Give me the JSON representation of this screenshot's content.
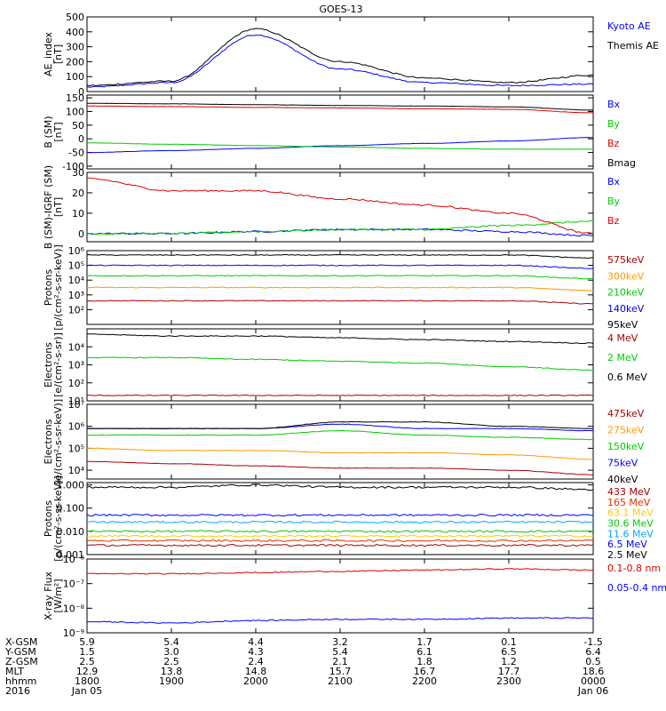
{
  "title": "GOES-13",
  "panels": [
    {
      "id": "ae",
      "ylabel": [
        "AE_index",
        "[nT]"
      ],
      "scale": "linear",
      "ylim": [
        0,
        500
      ],
      "yticks": [
        "0",
        "100",
        "200",
        "300",
        "400",
        "500"
      ],
      "yticks_values": [
        0,
        100,
        200,
        300,
        400,
        500
      ],
      "legend": [
        {
          "label": "Kyoto AE",
          "color": "#0000ff"
        },
        {
          "label": "Themis AE",
          "color": "#000000"
        }
      ]
    },
    {
      "id": "b_sm",
      "ylabel": [
        "B (SM)",
        "[nT]"
      ],
      "scale": "linear",
      "ylim": [
        -110,
        160
      ],
      "yticks": [
        "-100",
        "-50",
        "0",
        "50",
        "100",
        "150"
      ],
      "yticks_values": [
        -100,
        -50,
        0,
        50,
        100,
        150
      ],
      "legend": [
        {
          "label": "Bx",
          "color": "#0000ff"
        },
        {
          "label": "By",
          "color": "#00cc00"
        },
        {
          "label": "Bz",
          "color": "#dd0000"
        },
        {
          "label": "Bmag",
          "color": "#000000"
        }
      ]
    },
    {
      "id": "b_igrf",
      "ylabel": [
        "B (SM)-IGRF (SM)",
        "[nT]"
      ],
      "scale": "linear",
      "ylim": [
        -4,
        30
      ],
      "yticks": [
        "0",
        "10",
        "20",
        "30"
      ],
      "yticks_values": [
        0,
        10,
        20,
        30
      ],
      "legend": [
        {
          "label": "Bx",
          "color": "#0000ff"
        },
        {
          "label": "By",
          "color": "#00cc00"
        },
        {
          "label": "Bz",
          "color": "#dd0000"
        }
      ]
    },
    {
      "id": "protons_low",
      "ylabel": [
        "Protons",
        "[p/(cm²-s-sr-keV)]"
      ],
      "scale": "log",
      "ylim": [
        1,
        6
      ],
      "yticks": [
        "10²",
        "10³",
        "10⁴",
        "10⁵",
        "10⁶"
      ],
      "yticks_values": [
        2,
        3,
        4,
        5,
        6
      ],
      "legend": [
        {
          "label": "575keV",
          "color": "#aa0000"
        },
        {
          "label": "300keV",
          "color": "#ff9900"
        },
        {
          "label": "210keV",
          "color": "#00cc00"
        },
        {
          "label": "140keV",
          "color": "#0000ff"
        },
        {
          "label": "95keV",
          "color": "#000000"
        }
      ]
    },
    {
      "id": "electrons_mev",
      "ylabel": [
        "Electrons",
        "[e/(cm²-s-sr)]"
      ],
      "scale": "log",
      "ylim": [
        1,
        5
      ],
      "yticks": [
        "10¹",
        "10²",
        "10³",
        "10⁴"
      ],
      "yticks_values": [
        1,
        2,
        3,
        4
      ],
      "legend": [
        {
          "label": "4 MeV",
          "color": "#aa0000"
        },
        {
          "label": "2 MeV",
          "color": "#00cc00"
        },
        {
          "label": "0.6 MeV",
          "color": "#000000"
        }
      ]
    },
    {
      "id": "electrons_kev",
      "ylabel": [
        "Electrons",
        "[e/(cm²-s-sr-keV)]"
      ],
      "scale": "log",
      "ylim": [
        3.6,
        7
      ],
      "yticks": [
        "10⁴",
        "10⁵",
        "10⁶",
        "10⁷"
      ],
      "yticks_values": [
        4,
        5,
        6,
        7
      ],
      "legend": [
        {
          "label": "475keV",
          "color": "#aa0000"
        },
        {
          "label": "275keV",
          "color": "#ff9900"
        },
        {
          "label": "150keV",
          "color": "#00cc00"
        },
        {
          "label": "75keV",
          "color": "#0000ff"
        },
        {
          "label": "40keV",
          "color": "#000000"
        }
      ]
    },
    {
      "id": "protons_mev",
      "ylabel": [
        "Protons",
        "[p/(cm²-s-sr-keV)]"
      ],
      "scale": "log",
      "ylim": [
        -3,
        0.1
      ],
      "yticks": [
        "0.001",
        "0.010",
        "0.100",
        "1.000"
      ],
      "yticks_values": [
        -3,
        -2,
        -1,
        0
      ],
      "legend": [
        {
          "label": "433 MeV",
          "color": "#aa0000"
        },
        {
          "label": "165 MeV",
          "color": "#dd3300"
        },
        {
          "label": "63.1 MeV",
          "color": "#ffcc00"
        },
        {
          "label": "30.6 MeV",
          "color": "#00cc00"
        },
        {
          "label": "11.6 MeV",
          "color": "#00aaff"
        },
        {
          "label": "6.5 MeV",
          "color": "#0000ff"
        },
        {
          "label": "2.5 MeV",
          "color": "#000000"
        }
      ]
    },
    {
      "id": "xray",
      "ylabel": [
        "X-ray Flux",
        "[W/m²]"
      ],
      "scale": "log",
      "ylim": [
        -9,
        -6
      ],
      "yticks": [
        "10⁻⁹",
        "10⁻⁸",
        "10⁻⁷",
        "10⁻⁶"
      ],
      "yticks_values": [
        -9,
        -8,
        -7,
        -6
      ],
      "legend": [
        {
          "label": "0.1-0.8 nm",
          "color": "#dd0000"
        },
        {
          "label": "0.05-0.4 nm",
          "color": "#0000ff"
        }
      ]
    }
  ],
  "ephemeris": {
    "labels": [
      "X-GSM",
      "Y-GSM",
      "Z-GSM",
      "MLT",
      "hhmm",
      "2016"
    ],
    "columns": [
      [
        "5.9",
        "1.5",
        "2.5",
        "12.9",
        "1800",
        "Jan 05"
      ],
      [
        "5.4",
        "3.0",
        "2.5",
        "13.8",
        "1900",
        ""
      ],
      [
        "4.4",
        "4.3",
        "2.4",
        "14.8",
        "2000",
        ""
      ],
      [
        "3.2",
        "5.4",
        "2.1",
        "15.7",
        "2100",
        ""
      ],
      [
        "1.7",
        "6.1",
        "1.8",
        "16.7",
        "2200",
        ""
      ],
      [
        "0.1",
        "6.5",
        "1.2",
        "17.7",
        "2300",
        ""
      ],
      [
        "-1.5",
        "6.4",
        "0.5",
        "18.6",
        "0000",
        "Jan 06"
      ]
    ]
  },
  "chart_data": {
    "type": "line",
    "title": "GOES-13",
    "x": [
      "1800",
      "1900",
      "2000",
      "2100",
      "2200",
      "2300",
      "0000"
    ],
    "xlabel": "",
    "panels": [
      {
        "name": "AE_index [nT]",
        "series": [
          {
            "name": "Kyoto AE",
            "values": [
              30,
              60,
              380,
              150,
              60,
              40,
              50
            ]
          },
          {
            "name": "Themis AE",
            "values": [
              40,
              70,
              420,
              200,
              90,
              60,
              110
            ]
          }
        ]
      },
      {
        "name": "B (SM) [nT]",
        "series": [
          {
            "name": "Bx",
            "values": [
              -50,
              -43,
              -35,
              -25,
              -17,
              -8,
              5
            ]
          },
          {
            "name": "By",
            "values": [
              -15,
              -20,
              -25,
              -30,
              -35,
              -38,
              -38
            ]
          },
          {
            "name": "Bz",
            "values": [
              120,
              118,
              115,
              113,
              110,
              108,
              95
            ]
          },
          {
            "name": "Bmag",
            "values": [
              130,
              128,
              125,
              122,
              120,
              117,
              105
            ]
          }
        ]
      },
      {
        "name": "B (SM)-IGRF (SM) [nT]",
        "series": [
          {
            "name": "Bx",
            "values": [
              0,
              0,
              1,
              2,
              2,
              1,
              -1
            ]
          },
          {
            "name": "By",
            "values": [
              0,
              0,
              1,
              2,
              2,
              4,
              6
            ]
          },
          {
            "name": "Bz",
            "values": [
              27,
              21,
              21,
              17,
              14,
              10,
              0
            ]
          }
        ]
      },
      {
        "name": "Protons [p/(cm2-s-sr-keV)]",
        "series": [
          {
            "name": "575keV",
            "values": [
              2.6,
              2.6,
              2.6,
              2.6,
              2.6,
              2.6,
              2.4
            ]
          },
          {
            "name": "300keV",
            "values": [
              3.5,
              3.5,
              3.5,
              3.5,
              3.5,
              3.5,
              3.3
            ]
          },
          {
            "name": "210keV",
            "values": [
              4.3,
              4.3,
              4.3,
              4.3,
              4.3,
              4.3,
              4.1
            ]
          },
          {
            "name": "140keV",
            "values": [
              5.0,
              5.0,
              5.0,
              5.0,
              5.0,
              5.0,
              4.8
            ]
          },
          {
            "name": "95keV",
            "values": [
              5.7,
              5.7,
              5.7,
              5.7,
              5.7,
              5.7,
              5.5
            ]
          }
        ]
      },
      {
        "name": "Electrons [e/(cm2-s-sr)]",
        "series": [
          {
            "name": "4 MeV",
            "values": [
              1.3,
              1.3,
              1.3,
              1.3,
              1.3,
              1.3,
              1.3
            ]
          },
          {
            "name": "2 MeV",
            "values": [
              3.4,
              3.4,
              3.3,
              3.2,
              3.1,
              2.9,
              2.7
            ]
          },
          {
            "name": "0.6 MeV",
            "values": [
              4.7,
              4.6,
              4.6,
              4.5,
              4.4,
              4.3,
              4.2
            ]
          }
        ]
      },
      {
        "name": "Electrons [e/(cm2-s-sr-keV)]",
        "series": [
          {
            "name": "475keV",
            "values": [
              4.4,
              4.3,
              4.2,
              4.1,
              4.1,
              4.0,
              3.8
            ]
          },
          {
            "name": "275keV",
            "values": [
              5.0,
              4.9,
              4.9,
              4.8,
              4.8,
              4.7,
              4.5
            ]
          },
          {
            "name": "150keV",
            "values": [
              5.6,
              5.6,
              5.6,
              5.8,
              5.6,
              5.5,
              5.4
            ]
          },
          {
            "name": "75keV",
            "values": [
              5.9,
              5.9,
              5.9,
              6.1,
              5.9,
              5.9,
              5.8
            ]
          },
          {
            "name": "40keV",
            "values": [
              5.9,
              5.9,
              5.9,
              6.2,
              6.2,
              6.0,
              5.9
            ]
          }
        ]
      },
      {
        "name": "Protons [p/(cm2-s-sr-keV)] MeV",
        "series": [
          {
            "name": "433 MeV",
            "values": [
              -2.6,
              -2.6,
              -2.6,
              -2.6,
              -2.6,
              -2.6,
              -2.6
            ]
          },
          {
            "name": "165 MeV",
            "values": [
              -2.4,
              -2.4,
              -2.4,
              -2.4,
              -2.4,
              -2.4,
              -2.4
            ]
          },
          {
            "name": "63.1 MeV",
            "values": [
              -2.2,
              -2.2,
              -2.2,
              -2.2,
              -2.2,
              -2.2,
              -2.2
            ]
          },
          {
            "name": "30.6 MeV",
            "values": [
              -2.0,
              -2.0,
              -2.0,
              -2.0,
              -2.0,
              -2.0,
              -2.0
            ]
          },
          {
            "name": "11.6 MeV",
            "values": [
              -1.6,
              -1.6,
              -1.6,
              -1.6,
              -1.6,
              -1.6,
              -1.6
            ]
          },
          {
            "name": "6.5 MeV",
            "values": [
              -1.3,
              -1.3,
              -1.3,
              -1.3,
              -1.3,
              -1.3,
              -1.3
            ]
          },
          {
            "name": "2.5 MeV",
            "values": [
              -0.1,
              -0.1,
              0.0,
              -0.1,
              -0.1,
              -0.1,
              -0.2
            ]
          }
        ]
      },
      {
        "name": "X-ray Flux [W/m2]",
        "series": [
          {
            "name": "0.1-0.8 nm",
            "values": [
              -6.6,
              -6.6,
              -6.55,
              -6.5,
              -6.45,
              -6.4,
              -6.45
            ]
          },
          {
            "name": "0.05-0.4 nm",
            "values": [
              -8.55,
              -8.6,
              -8.5,
              -8.45,
              -8.45,
              -8.4,
              -8.4
            ]
          }
        ]
      }
    ]
  }
}
